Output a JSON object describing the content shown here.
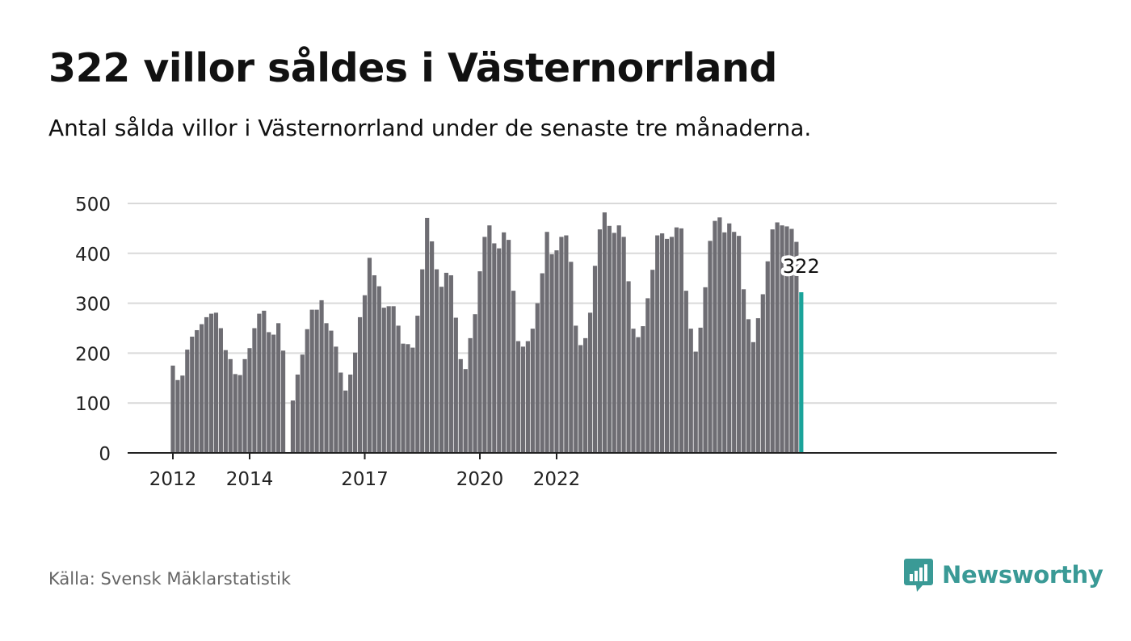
{
  "title": "322 villor såldes i Västernorrland",
  "subtitle": "Antal sålda villor i Västernorrland under de senaste tre månaderna.",
  "source": "Källa: Svensk Mäklarstatistik",
  "brand": {
    "name": "Newsworthy",
    "icon": "newsworthy-logo-icon"
  },
  "colors": {
    "bar": "#6e6d73",
    "highlight": "#1aa39a",
    "grid": "#d9d9d9",
    "axis": "#222222",
    "text": "#222222"
  },
  "chart_data": {
    "type": "bar",
    "y_ticks": [
      0,
      100,
      200,
      300,
      400,
      500
    ],
    "ylim": [
      0,
      500
    ],
    "x_tick_labels": [
      {
        "label": "2012",
        "x": 0
      },
      {
        "label": "2014",
        "x": 16
      },
      {
        "label": "2017",
        "x": 40
      },
      {
        "label": "2020",
        "x": 64
      },
      {
        "label": "2022",
        "x": 80
      }
    ],
    "grid": true,
    "values": [
      175,
      146,
      155,
      207,
      233,
      246,
      258,
      272,
      279,
      281,
      250,
      206,
      188,
      158,
      156,
      188,
      210,
      250,
      279,
      285,
      242,
      237,
      260,
      205,
      0,
      105,
      157,
      197,
      248,
      287,
      287,
      306,
      260,
      245,
      213,
      161,
      125,
      157,
      201,
      272,
      316,
      391,
      356,
      334,
      291,
      294,
      294,
      255,
      219,
      218,
      211,
      275,
      368,
      471,
      424,
      368,
      333,
      361,
      356,
      271,
      188,
      168,
      230,
      278,
      364,
      433,
      456,
      420,
      410,
      442,
      427,
      325,
      224,
      213,
      224,
      249,
      300,
      360,
      443,
      398,
      406,
      433,
      436,
      383,
      255,
      216,
      230,
      281,
      375,
      448,
      482,
      455,
      441,
      456,
      433,
      344,
      249,
      232,
      254,
      310,
      367,
      436,
      440,
      429,
      433,
      452,
      450,
      325,
      249,
      203,
      251,
      332,
      425,
      465,
      472,
      442,
      460,
      443,
      435,
      328,
      268,
      222,
      270,
      318,
      384,
      448,
      462,
      456,
      454,
      449,
      423,
      322
    ],
    "highlight_index": 131,
    "highlight_label": "322"
  }
}
